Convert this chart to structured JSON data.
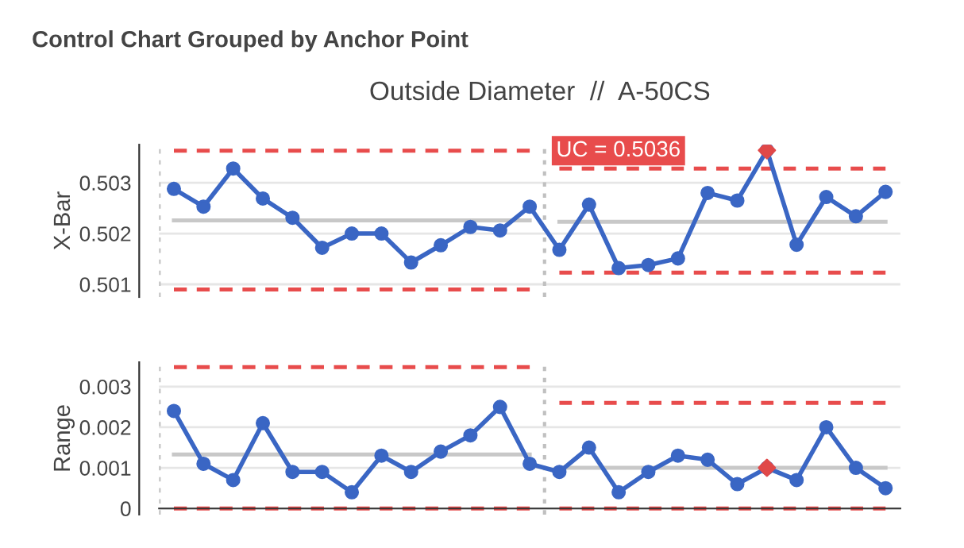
{
  "chart_data": [
    {
      "type": "line",
      "title": "Control Chart Grouped by Anchor Point",
      "subtitle": "Outside Diameter  //  A-50CS",
      "ylabel": "X-Bar",
      "categories": [
        null,
        null,
        null,
        null,
        null,
        null,
        null,
        null,
        null,
        null,
        null,
        null,
        null,
        null,
        null,
        null,
        null,
        null,
        null,
        null,
        null,
        null,
        null,
        null,
        null
      ],
      "ylim": [
        0.50075,
        0.50375
      ],
      "yticks": [
        0.501,
        0.502,
        0.503
      ],
      "grid": "y",
      "marker": "circle",
      "tick_labels": "y",
      "series": [
        {
          "color": "#3a66c4",
          "colors": [
            "#3a66c4",
            "#3a66c4",
            "#3a66c4",
            "#3a66c4",
            "#3a66c4",
            "#3a66c4",
            "#3a66c4",
            "#3a66c4",
            "#3a66c4",
            "#3a66c4",
            "#3a66c4",
            "#3a66c4",
            "#3a66c4",
            "#3a66c4",
            "#3a66c4",
            "#3a66c4",
            "#3a66c4",
            "#3a66c4",
            "#3a66c4",
            "#3a66c4",
            "#e04848",
            "#3a66c4",
            "#3a66c4",
            "#3a66c4",
            "#3a66c4"
          ],
          "values": [
            0.50288,
            0.50253,
            0.50328,
            0.50269,
            0.50231,
            0.50172,
            0.502,
            0.502,
            0.50143,
            0.50177,
            0.50213,
            0.50206,
            0.50253,
            0.50168,
            0.50257,
            0.50132,
            0.50138,
            0.50151,
            0.5028,
            0.50265,
            0.50364,
            0.50178,
            0.50272,
            0.50234,
            0.50282
          ]
        },
        {
          "marker": "none",
          "color": "#e84c4c",
          "line_style": "dashed",
          "values": [
            0.50363,
            0.50363,
            0.50363,
            0.50363,
            0.50363,
            0.50363,
            0.50363,
            0.50363,
            0.50363,
            0.50363,
            0.50363,
            0.50363,
            0.50363,
            null,
            null,
            null,
            null,
            null,
            null,
            null,
            null,
            null,
            null,
            null,
            null
          ]
        },
        {
          "marker": "none",
          "color": "#c8c8c8",
          "line_style": "solid",
          "values": [
            0.50226,
            0.50226,
            0.50226,
            0.50226,
            0.50226,
            0.50226,
            0.50226,
            0.50226,
            0.50226,
            0.50226,
            0.50226,
            0.50226,
            0.50226,
            null,
            null,
            null,
            null,
            null,
            null,
            null,
            null,
            null,
            null,
            null,
            null
          ]
        },
        {
          "marker": "none",
          "color": "#e84c4c",
          "line_style": "dashed",
          "values": [
            0.5009,
            0.5009,
            0.5009,
            0.5009,
            0.5009,
            0.5009,
            0.5009,
            0.5009,
            0.5009,
            0.5009,
            0.5009,
            0.5009,
            0.5009,
            null,
            null,
            null,
            null,
            null,
            null,
            null,
            null,
            null,
            null,
            null,
            null
          ]
        },
        {
          "marker": "none",
          "color": "#e84c4c",
          "line_style": "dashed",
          "values": [
            null,
            null,
            null,
            null,
            null,
            null,
            null,
            null,
            null,
            null,
            null,
            null,
            null,
            0.50328,
            0.50328,
            0.50328,
            0.50328,
            0.50328,
            0.50328,
            0.50328,
            0.50328,
            0.50328,
            0.50328,
            0.50328,
            0.50328
          ]
        },
        {
          "marker": "none",
          "color": "#c8c8c8",
          "line_style": "solid",
          "values": [
            null,
            null,
            null,
            null,
            null,
            null,
            null,
            null,
            null,
            null,
            null,
            null,
            null,
            0.50223,
            0.50223,
            0.50223,
            0.50223,
            0.50223,
            0.50223,
            0.50223,
            0.50223,
            0.50223,
            0.50223,
            0.50223,
            0.50223
          ]
        },
        {
          "marker": "none",
          "color": "#e84c4c",
          "line_style": "dashed",
          "values": [
            null,
            null,
            null,
            null,
            null,
            null,
            null,
            null,
            null,
            null,
            null,
            null,
            null,
            0.50123,
            0.50123,
            0.50123,
            0.50123,
            0.50123,
            0.50123,
            0.50123,
            0.50123,
            0.50123,
            0.50123,
            0.50123,
            0.50123
          ]
        }
      ],
      "annotations": [
        "UC = 0.5036"
      ]
    },
    {
      "type": "line",
      "ylabel": "Range",
      "categories": [
        null,
        null,
        null,
        null,
        null,
        null,
        null,
        null,
        null,
        null,
        null,
        null,
        null,
        null,
        null,
        null,
        null,
        null,
        null,
        null,
        null,
        null,
        null,
        null,
        null
      ],
      "ylim": [
        -0.00015,
        0.0036
      ],
      "yticks": [
        0,
        0.001,
        0.002,
        0.003
      ],
      "grid": "y",
      "marker": "circle",
      "tick_labels": "y",
      "series": [
        {
          "color": "#3a66c4",
          "colors": [
            "#3a66c4",
            "#3a66c4",
            "#3a66c4",
            "#3a66c4",
            "#3a66c4",
            "#3a66c4",
            "#3a66c4",
            "#3a66c4",
            "#3a66c4",
            "#3a66c4",
            "#3a66c4",
            "#3a66c4",
            "#3a66c4",
            "#3a66c4",
            "#3a66c4",
            "#3a66c4",
            "#3a66c4",
            "#3a66c4",
            "#3a66c4",
            "#3a66c4",
            "#e04848",
            "#3a66c4",
            "#3a66c4",
            "#3a66c4",
            "#3a66c4"
          ],
          "values": [
            0.0024,
            0.0011,
            0.0007,
            0.0021,
            0.0009,
            0.0009,
            0.0004,
            0.0013,
            0.0009,
            0.0014,
            0.0018,
            0.0025,
            0.0011,
            0.0009,
            0.0015,
            0.0004,
            0.0009,
            0.0013,
            0.0012,
            0.0006,
            0.001,
            0.0007,
            0.002,
            0.001,
            0.0005
          ]
        },
        {
          "marker": "none",
          "color": "#e84c4c",
          "line_style": "dashed",
          "values": [
            0.00348,
            0.00348,
            0.00348,
            0.00348,
            0.00348,
            0.00348,
            0.00348,
            0.00348,
            0.00348,
            0.00348,
            0.00348,
            0.00348,
            0.00348,
            null,
            null,
            null,
            null,
            null,
            null,
            null,
            null,
            null,
            null,
            null,
            null
          ]
        },
        {
          "marker": "none",
          "color": "#c8c8c8",
          "line_style": "solid",
          "values": [
            0.00133,
            0.00133,
            0.00133,
            0.00133,
            0.00133,
            0.00133,
            0.00133,
            0.00133,
            0.00133,
            0.00133,
            0.00133,
            0.00133,
            0.00133,
            null,
            null,
            null,
            null,
            null,
            null,
            null,
            null,
            null,
            null,
            null,
            null
          ]
        },
        {
          "marker": "none",
          "color": "#e84c4c",
          "line_style": "dashed",
          "values": [
            0,
            0,
            0,
            0,
            0,
            0,
            0,
            0,
            0,
            0,
            0,
            0,
            0,
            null,
            null,
            null,
            null,
            null,
            null,
            null,
            null,
            null,
            null,
            null,
            null
          ]
        },
        {
          "marker": "none",
          "color": "#e84c4c",
          "line_style": "dashed",
          "values": [
            null,
            null,
            null,
            null,
            null,
            null,
            null,
            null,
            null,
            null,
            null,
            null,
            null,
            0.0026,
            0.0026,
            0.0026,
            0.0026,
            0.0026,
            0.0026,
            0.0026,
            0.0026,
            0.0026,
            0.0026,
            0.0026,
            0.0026
          ]
        },
        {
          "marker": "none",
          "color": "#c8c8c8",
          "line_style": "solid",
          "values": [
            null,
            null,
            null,
            null,
            null,
            null,
            null,
            null,
            null,
            null,
            null,
            null,
            null,
            0.001,
            0.001,
            0.001,
            0.001,
            0.001,
            0.001,
            0.001,
            0.001,
            0.001,
            0.001,
            0.001,
            0.001
          ]
        },
        {
          "marker": "none",
          "color": "#e84c4c",
          "line_style": "dashed",
          "values": [
            null,
            null,
            null,
            null,
            null,
            null,
            null,
            null,
            null,
            null,
            null,
            null,
            null,
            0,
            0,
            0,
            0,
            0,
            0,
            0,
            0,
            0,
            0,
            0,
            0
          ]
        }
      ]
    }
  ]
}
